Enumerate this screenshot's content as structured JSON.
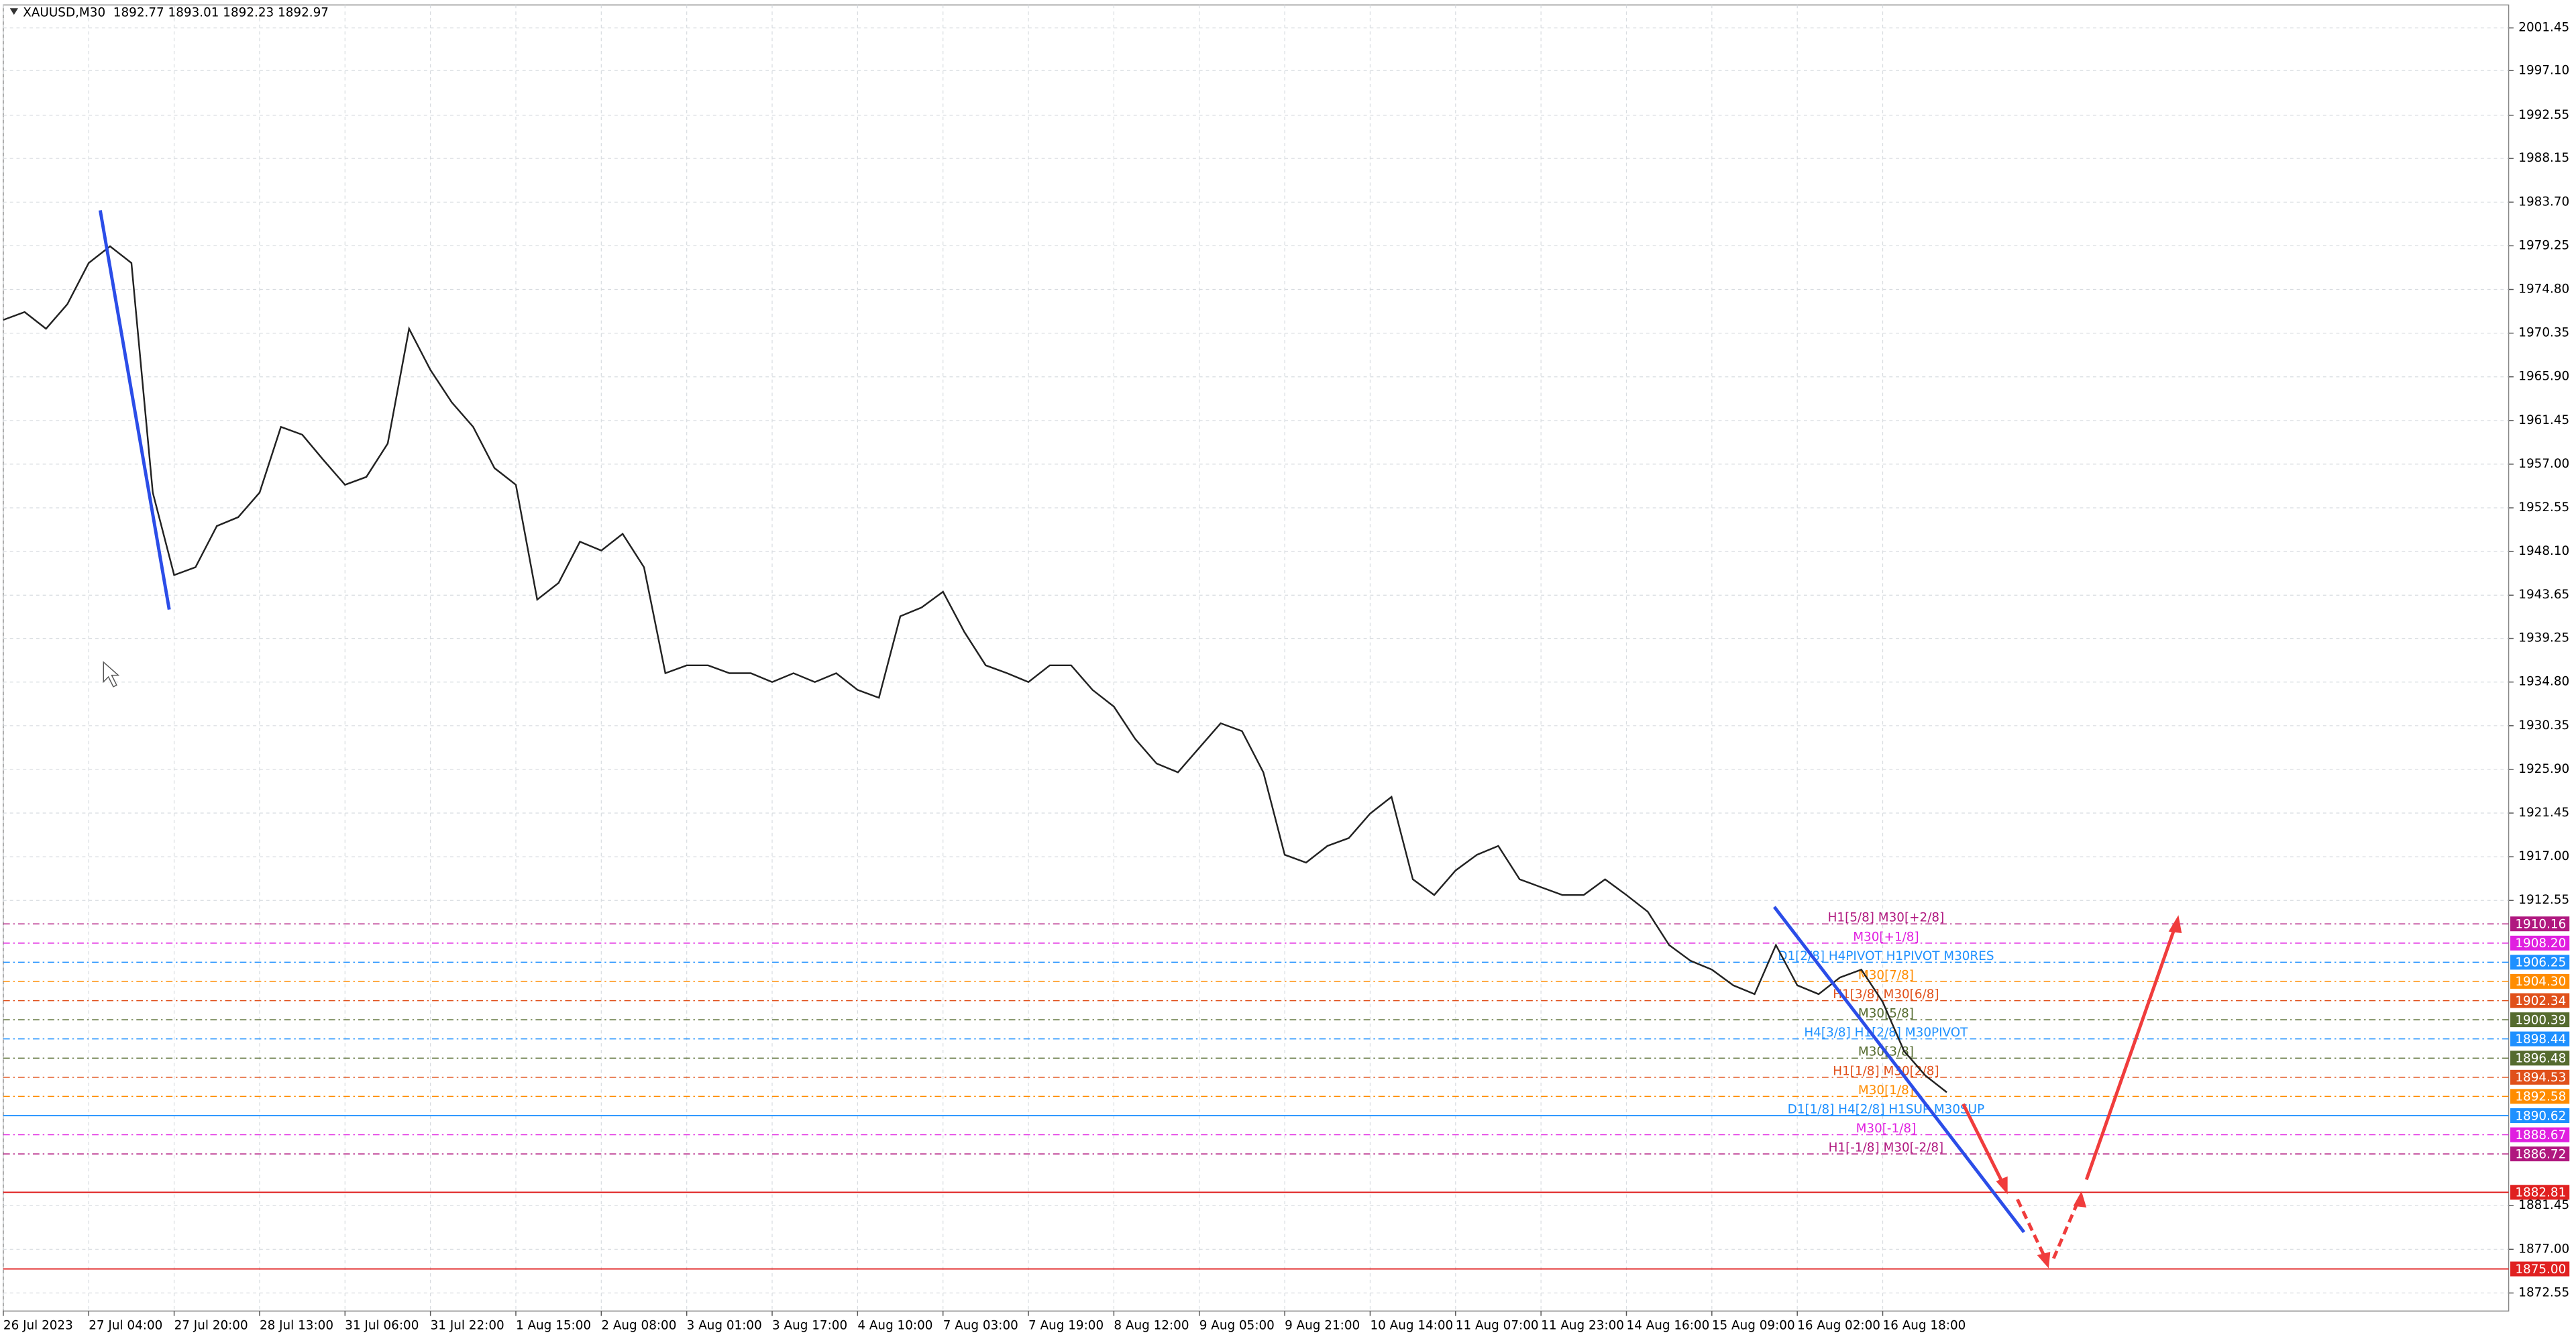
{
  "chart_data": {
    "type": "line",
    "title": "XAUUSD,M30  1892.77 1893.01 1892.23 1892.97",
    "categories": [
      "26 Jul 2023",
      null,
      null,
      null,
      "27 Jul 04:00",
      null,
      null,
      null,
      "27 Jul 20:00",
      null,
      null,
      null,
      "28 Jul 13:00",
      null,
      null,
      null,
      "31 Jul 06:00",
      null,
      null,
      null,
      "31 Jul 22:00",
      null,
      null,
      null,
      "1 Aug 15:00",
      null,
      null,
      null,
      "2 Aug 08:00",
      null,
      null,
      null,
      "3 Aug 01:00",
      null,
      null,
      null,
      "3 Aug 17:00",
      null,
      null,
      null,
      "4 Aug 10:00",
      null,
      null,
      null,
      "7 Aug 03:00",
      null,
      null,
      null,
      "7 Aug 19:00",
      null,
      null,
      null,
      "8 Aug 12:00",
      null,
      null,
      null,
      "9 Aug 05:00",
      null,
      null,
      null,
      "9 Aug 21:00",
      null,
      null,
      null,
      "10 Aug 14:00",
      null,
      null,
      null,
      "11 Aug 07:00",
      null,
      null,
      null,
      "11 Aug 23:00",
      null,
      null,
      null,
      "14 Aug 16:00",
      null,
      null,
      null,
      "15 Aug 09:00",
      null,
      null,
      null,
      "16 Aug 02:00",
      null,
      null,
      null,
      "16 Aug 18:00",
      null,
      null,
      null
    ],
    "series": [
      {
        "name": "XAUUSD",
        "color": "#222222",
        "values": [
          1971.7,
          1972.5,
          1970.8,
          1973.3,
          1977.5,
          1979.2,
          1977.5,
          1954.1,
          1945.7,
          1946.5,
          1950.7,
          1951.6,
          1954.1,
          1960.8,
          1960.0,
          1957.4,
          1954.9,
          1955.7,
          1959.1,
          1970.8,
          1966.6,
          1963.3,
          1960.8,
          1956.6,
          1954.9,
          1943.2,
          1944.9,
          1949.1,
          1948.2,
          1949.9,
          1946.5,
          1935.7,
          1936.5,
          1936.5,
          1935.7,
          1935.7,
          1934.8,
          1935.7,
          1934.8,
          1935.7,
          1934.0,
          1933.2,
          1941.5,
          1942.4,
          1944.0,
          1939.9,
          1936.5,
          1935.7,
          1934.8,
          1936.5,
          1936.5,
          1934.0,
          1932.3,
          1929.0,
          1926.5,
          1925.6,
          1928.1,
          1930.6,
          1929.8,
          1925.6,
          1917.2,
          1916.4,
          1918.1,
          1918.9,
          1921.4,
          1923.1,
          1914.7,
          1913.1,
          1915.6,
          1917.2,
          1918.1,
          1914.7,
          1913.9,
          1913.1,
          1913.1,
          1914.7,
          1913.1,
          1911.4,
          1908.0,
          1906.4,
          1905.5,
          1903.9,
          1903.0,
          1908.0,
          1903.9,
          1903.0,
          1904.7,
          1905.5,
          1902.2,
          1897.2,
          1894.7,
          1893.0
        ]
      }
    ],
    "ylim": [
      1870.71,
      2003.79
    ],
    "yticks": [
      2001.45,
      {
        "value": 1997.1,
        "label": "1997.10"
      },
      1992.55,
      1988.15,
      {
        "value": 1983.7,
        "label": "1983.70"
      },
      1979.25,
      {
        "value": 1974.8,
        "label": "1974.80"
      },
      1970.35,
      {
        "value": 1965.9,
        "label": "1965.90"
      },
      1961.45,
      {
        "value": 1957.0,
        "label": "1957.00"
      },
      1952.55,
      {
        "value": 1948.1,
        "label": "1948.10"
      },
      1943.65,
      1939.25,
      {
        "value": 1934.8,
        "label": "1934.80"
      },
      1930.35,
      {
        "value": 1925.9,
        "label": "1925.90"
      },
      1921.45,
      {
        "value": 1917.0,
        "label": "1917.00"
      },
      1912.55,
      1881.45,
      {
        "value": 1877.0,
        "label": "1877.00"
      },
      1872.55
    ],
    "grid": true,
    "levels": [
      {
        "value": 1910.16,
        "color": "#b0187f",
        "name": "H1[5/8] M30[+2/8]"
      },
      {
        "value": 1908.2,
        "label": "1908.20",
        "color": "#e020e0",
        "name": "M30[+1/8]"
      },
      {
        "value": 1906.25,
        "color": "#1e90ff",
        "name": "D1[2/8] H4PIVOT H1PIVOT M30RES"
      },
      {
        "value": 1904.3,
        "label": "1904.30",
        "color": "#ff8c00",
        "name": "M30[7/8]"
      },
      {
        "value": 1902.34,
        "color": "#e0501a",
        "name": "H1[3/8] M30[6/8]"
      },
      {
        "value": 1900.39,
        "color": "#556b2f",
        "name": "M30[5/8]"
      },
      {
        "value": 1898.44,
        "color": "#1e90ff",
        "name": "H4[3/8] H1[2/8] M30PIVOT"
      },
      {
        "value": 1896.48,
        "color": "#556b2f",
        "name": "M30[3/8]"
      },
      {
        "value": 1894.53,
        "color": "#e0501a",
        "name": "H1[1/8] M30[2/8]"
      },
      {
        "value": 1892.58,
        "color": "#ff8c00",
        "name": "M30[1/8]"
      },
      {
        "value": 1890.62,
        "color": "#1e90ff",
        "name": "D1[1/8] H4[2/8] H1SUP M30SUP",
        "style": "solid"
      },
      {
        "value": 1888.67,
        "color": "#e020e0",
        "name": "M30[-1/8]"
      },
      {
        "value": 1886.72,
        "color": "#b0187f",
        "name": "H1[-1/8] M30[-2/8]"
      },
      {
        "value": 1882.81,
        "color": "#e02020",
        "style": "solid"
      },
      {
        "value": 1875.0,
        "label": "1875.00",
        "color": "#e02020",
        "style": "solid"
      }
    ]
  }
}
